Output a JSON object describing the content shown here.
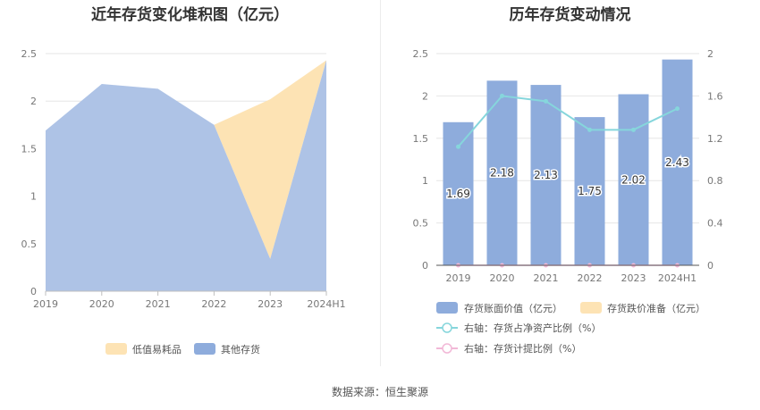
{
  "left_chart": {
    "title": "近年存货变化堆积图（亿元）"
  },
  "right_chart": {
    "title": "历年存货变动情况"
  },
  "source": "数据来源：恒生聚源",
  "colors": {
    "blue": "#8eacdc",
    "blue_area": "#aec3e6",
    "orange": "#fde3b4",
    "cyan": "#86d6dc",
    "pink": "#f2b8d7",
    "grid": "#e6e6e6",
    "axis_text": "#777777"
  },
  "chart_data": [
    {
      "type": "area",
      "stacked": true,
      "categories": [
        "2019",
        "2020",
        "2021",
        "2022",
        "2023",
        "2024H1"
      ],
      "ylim": [
        0,
        2.5
      ],
      "yticks": [
        "0",
        "0.5",
        "1",
        "1.5",
        "2",
        "2.5"
      ],
      "series": [
        {
          "name": "其他存货",
          "values": [
            1.69,
            2.18,
            2.13,
            1.75,
            0.34,
            2.43
          ]
        },
        {
          "name": "低值易耗品",
          "values": [
            0,
            0,
            0,
            0,
            1.68,
            0
          ]
        }
      ],
      "legend": [
        "低值易耗品",
        "其他存货"
      ],
      "legend_position": "bottom",
      "grid": true
    },
    {
      "type": "bar",
      "categories": [
        "2019",
        "2020",
        "2021",
        "2022",
        "2023",
        "2024H1"
      ],
      "ylim": [
        0,
        2.5
      ],
      "yticks": [
        "0",
        "0.5",
        "1",
        "1.5",
        "2",
        "2.5"
      ],
      "y2lim": [
        0,
        2
      ],
      "y2ticks": [
        "0",
        "0.4",
        "0.8",
        "1.2",
        "1.6",
        "2"
      ],
      "series": [
        {
          "name": "存货账面价值（亿元）",
          "axis": "left",
          "kind": "bar",
          "values": [
            1.69,
            2.18,
            2.13,
            1.75,
            2.02,
            2.43
          ],
          "labels": [
            "1.69",
            "2.18",
            "2.13",
            "1.75",
            "2.02",
            "2.43"
          ]
        },
        {
          "name": "存货跌价准备（亿元）",
          "axis": "left",
          "kind": "bar",
          "values": [
            0,
            0,
            0,
            0,
            0,
            0
          ]
        },
        {
          "name": "右轴：存货占净资产比例（%）",
          "axis": "right",
          "kind": "line",
          "values": [
            1.12,
            1.6,
            1.55,
            1.28,
            1.28,
            1.48
          ]
        },
        {
          "name": "右轴：存货计提比例（%）",
          "axis": "right",
          "kind": "line",
          "values": [
            0,
            0,
            0,
            0,
            0,
            0
          ]
        }
      ],
      "legend_position": "bottom",
      "grid": true
    }
  ]
}
